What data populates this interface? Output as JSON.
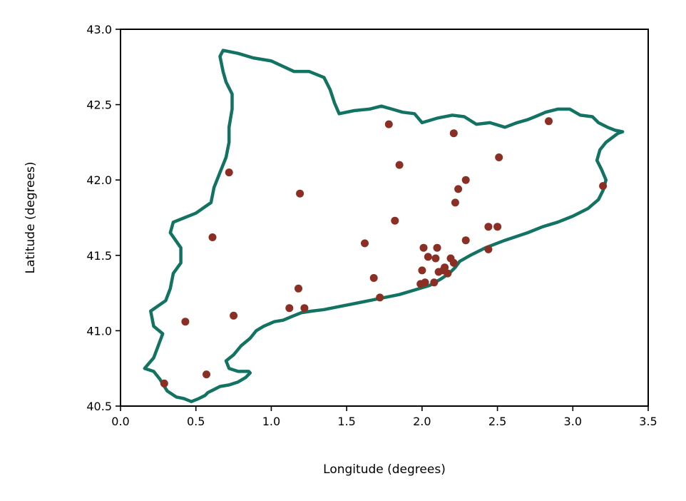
{
  "chart_data": {
    "type": "scatter",
    "xlabel": "Longitude (degrees)",
    "ylabel": "Latitude (degrees)",
    "xlim": [
      0.0,
      3.5
    ],
    "ylim": [
      40.5,
      43.0
    ],
    "xticks": [
      "0.0",
      "0.5",
      "1.0",
      "1.5",
      "2.0",
      "2.5",
      "3.0",
      "3.5"
    ],
    "yticks": [
      "40.5",
      "41.0",
      "41.5",
      "42.0",
      "42.5",
      "43.0"
    ],
    "grid": false,
    "colors": {
      "points": "#8b2e24",
      "boundary": "#137362"
    },
    "boundary": [
      [
        0.16,
        40.75
      ],
      [
        0.22,
        40.73
      ],
      [
        0.26,
        40.68
      ],
      [
        0.31,
        40.6
      ],
      [
        0.37,
        40.56
      ],
      [
        0.42,
        40.55
      ],
      [
        0.47,
        40.53
      ],
      [
        0.52,
        40.55
      ],
      [
        0.56,
        40.57
      ],
      [
        0.58,
        40.59
      ],
      [
        0.62,
        40.61
      ],
      [
        0.66,
        40.63
      ],
      [
        0.72,
        40.64
      ],
      [
        0.78,
        40.66
      ],
      [
        0.83,
        40.69
      ],
      [
        0.86,
        40.72
      ],
      [
        0.85,
        40.73
      ],
      [
        0.78,
        40.73
      ],
      [
        0.72,
        40.75
      ],
      [
        0.7,
        40.8
      ],
      [
        0.75,
        40.84
      ],
      [
        0.8,
        40.9
      ],
      [
        0.86,
        40.95
      ],
      [
        0.9,
        41.0
      ],
      [
        0.95,
        41.03
      ],
      [
        1.02,
        41.06
      ],
      [
        1.08,
        41.07
      ],
      [
        1.15,
        41.1
      ],
      [
        1.2,
        41.12
      ],
      [
        1.27,
        41.13
      ],
      [
        1.35,
        41.14
      ],
      [
        1.45,
        41.16
      ],
      [
        1.55,
        41.18
      ],
      [
        1.65,
        41.2
      ],
      [
        1.75,
        41.22
      ],
      [
        1.85,
        41.24
      ],
      [
        1.95,
        41.27
      ],
      [
        2.05,
        41.3
      ],
      [
        2.12,
        41.34
      ],
      [
        2.18,
        41.38
      ],
      [
        2.22,
        41.42
      ],
      [
        2.25,
        41.46
      ],
      [
        2.32,
        41.5
      ],
      [
        2.42,
        41.55
      ],
      [
        2.55,
        41.6
      ],
      [
        2.7,
        41.65
      ],
      [
        2.8,
        41.69
      ],
      [
        2.9,
        41.72
      ],
      [
        3.0,
        41.76
      ],
      [
        3.1,
        41.81
      ],
      [
        3.17,
        41.87
      ],
      [
        3.2,
        41.93
      ],
      [
        3.22,
        42.0
      ],
      [
        3.19,
        42.07
      ],
      [
        3.16,
        42.13
      ],
      [
        3.18,
        42.2
      ],
      [
        3.22,
        42.25
      ],
      [
        3.3,
        42.31
      ],
      [
        3.33,
        42.32
      ],
      [
        3.28,
        42.33
      ],
      [
        3.23,
        42.35
      ],
      [
        3.17,
        42.38
      ],
      [
        3.13,
        42.42
      ],
      [
        3.05,
        42.43
      ],
      [
        2.98,
        42.47
      ],
      [
        2.9,
        42.47
      ],
      [
        2.82,
        42.45
      ],
      [
        2.75,
        42.42
      ],
      [
        2.7,
        42.4
      ],
      [
        2.63,
        42.38
      ],
      [
        2.55,
        42.35
      ],
      [
        2.45,
        42.38
      ],
      [
        2.36,
        42.37
      ],
      [
        2.28,
        42.42
      ],
      [
        2.2,
        42.43
      ],
      [
        2.1,
        42.41
      ],
      [
        2.0,
        42.38
      ],
      [
        1.95,
        42.44
      ],
      [
        1.87,
        42.45
      ],
      [
        1.8,
        42.47
      ],
      [
        1.73,
        42.49
      ],
      [
        1.65,
        42.47
      ],
      [
        1.55,
        42.46
      ],
      [
        1.45,
        42.44
      ],
      [
        1.42,
        42.51
      ],
      [
        1.39,
        42.6
      ],
      [
        1.35,
        42.68
      ],
      [
        1.25,
        42.72
      ],
      [
        1.15,
        42.72
      ],
      [
        1.0,
        42.79
      ],
      [
        0.88,
        42.81
      ],
      [
        0.78,
        42.84
      ],
      [
        0.68,
        42.86
      ],
      [
        0.66,
        42.82
      ],
      [
        0.68,
        42.72
      ],
      [
        0.7,
        42.65
      ],
      [
        0.74,
        42.57
      ],
      [
        0.74,
        42.47
      ],
      [
        0.72,
        42.35
      ],
      [
        0.72,
        42.25
      ],
      [
        0.7,
        42.15
      ],
      [
        0.66,
        42.05
      ],
      [
        0.62,
        41.95
      ],
      [
        0.6,
        41.85
      ],
      [
        0.5,
        41.78
      ],
      [
        0.35,
        41.72
      ],
      [
        0.33,
        41.65
      ],
      [
        0.4,
        41.55
      ],
      [
        0.4,
        41.45
      ],
      [
        0.35,
        41.38
      ],
      [
        0.33,
        41.28
      ],
      [
        0.3,
        41.2
      ],
      [
        0.2,
        41.13
      ],
      [
        0.22,
        41.03
      ],
      [
        0.28,
        40.98
      ],
      [
        0.25,
        40.9
      ],
      [
        0.22,
        40.82
      ],
      [
        0.16,
        40.75
      ]
    ],
    "points": [
      [
        2.84,
        42.39
      ],
      [
        1.78,
        42.37
      ],
      [
        2.21,
        42.31
      ],
      [
        2.51,
        42.15
      ],
      [
        1.85,
        42.1
      ],
      [
        0.72,
        42.05
      ],
      [
        2.29,
        42.0
      ],
      [
        2.24,
        41.94
      ],
      [
        1.19,
        41.91
      ],
      [
        2.22,
        41.85
      ],
      [
        3.2,
        41.96
      ],
      [
        1.82,
        41.73
      ],
      [
        2.44,
        41.69
      ],
      [
        2.5,
        41.69
      ],
      [
        0.61,
        41.62
      ],
      [
        2.29,
        41.6
      ],
      [
        1.62,
        41.58
      ],
      [
        2.01,
        41.55
      ],
      [
        2.1,
        41.55
      ],
      [
        2.44,
        41.54
      ],
      [
        2.04,
        41.49
      ],
      [
        2.09,
        41.48
      ],
      [
        2.19,
        41.48
      ],
      [
        2.21,
        41.45
      ],
      [
        2.15,
        41.42
      ],
      [
        2.0,
        41.4
      ],
      [
        2.14,
        41.4
      ],
      [
        2.11,
        41.39
      ],
      [
        2.17,
        41.38
      ],
      [
        1.68,
        41.35
      ],
      [
        1.99,
        41.31
      ],
      [
        2.02,
        41.32
      ],
      [
        2.08,
        41.32
      ],
      [
        1.18,
        41.28
      ],
      [
        1.72,
        41.22
      ],
      [
        1.12,
        41.15
      ],
      [
        1.22,
        41.15
      ],
      [
        0.75,
        41.1
      ],
      [
        0.43,
        41.06
      ],
      [
        0.57,
        40.71
      ],
      [
        0.29,
        40.65
      ]
    ]
  }
}
